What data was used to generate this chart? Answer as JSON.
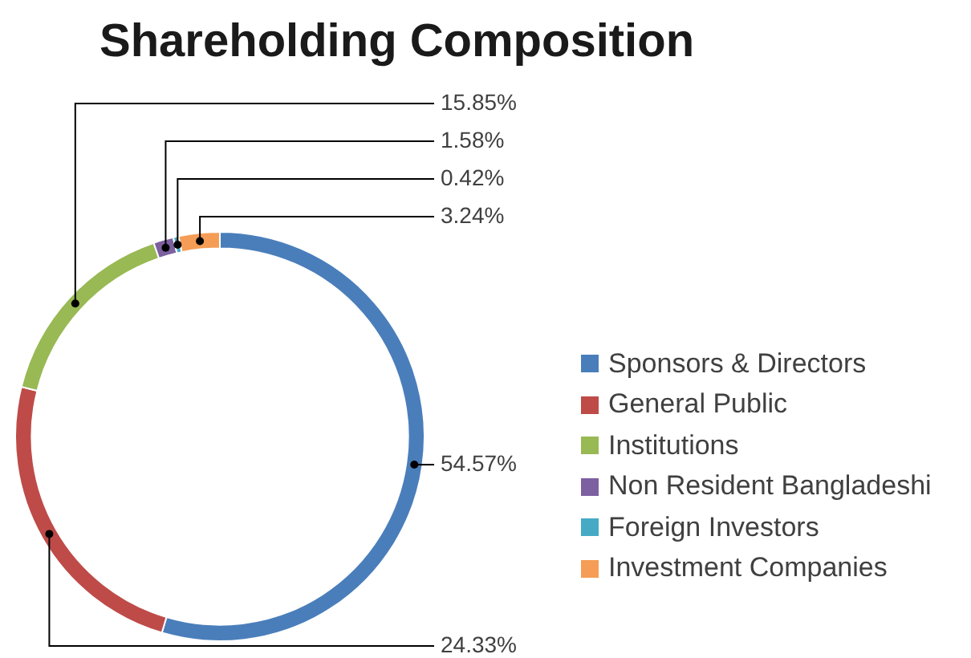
{
  "chart_data": {
    "type": "donut",
    "title": "Shareholding Composition",
    "categories": [
      "Sponsors & Directors",
      "General Public",
      "Institutions",
      "Non Resident Bangladeshi",
      "Foreign Investors",
      "Investment Companies"
    ],
    "values": [
      54.57,
      24.33,
      15.85,
      1.58,
      0.42,
      3.24
    ],
    "value_labels": [
      "54.57%",
      "24.33%",
      "15.85%",
      "1.58%",
      "0.42%",
      "3.24%"
    ],
    "colors": [
      "#4a7ebb",
      "#be4b48",
      "#98b954",
      "#7d60a0",
      "#46aac5",
      "#f59d56"
    ],
    "legend": "right"
  }
}
